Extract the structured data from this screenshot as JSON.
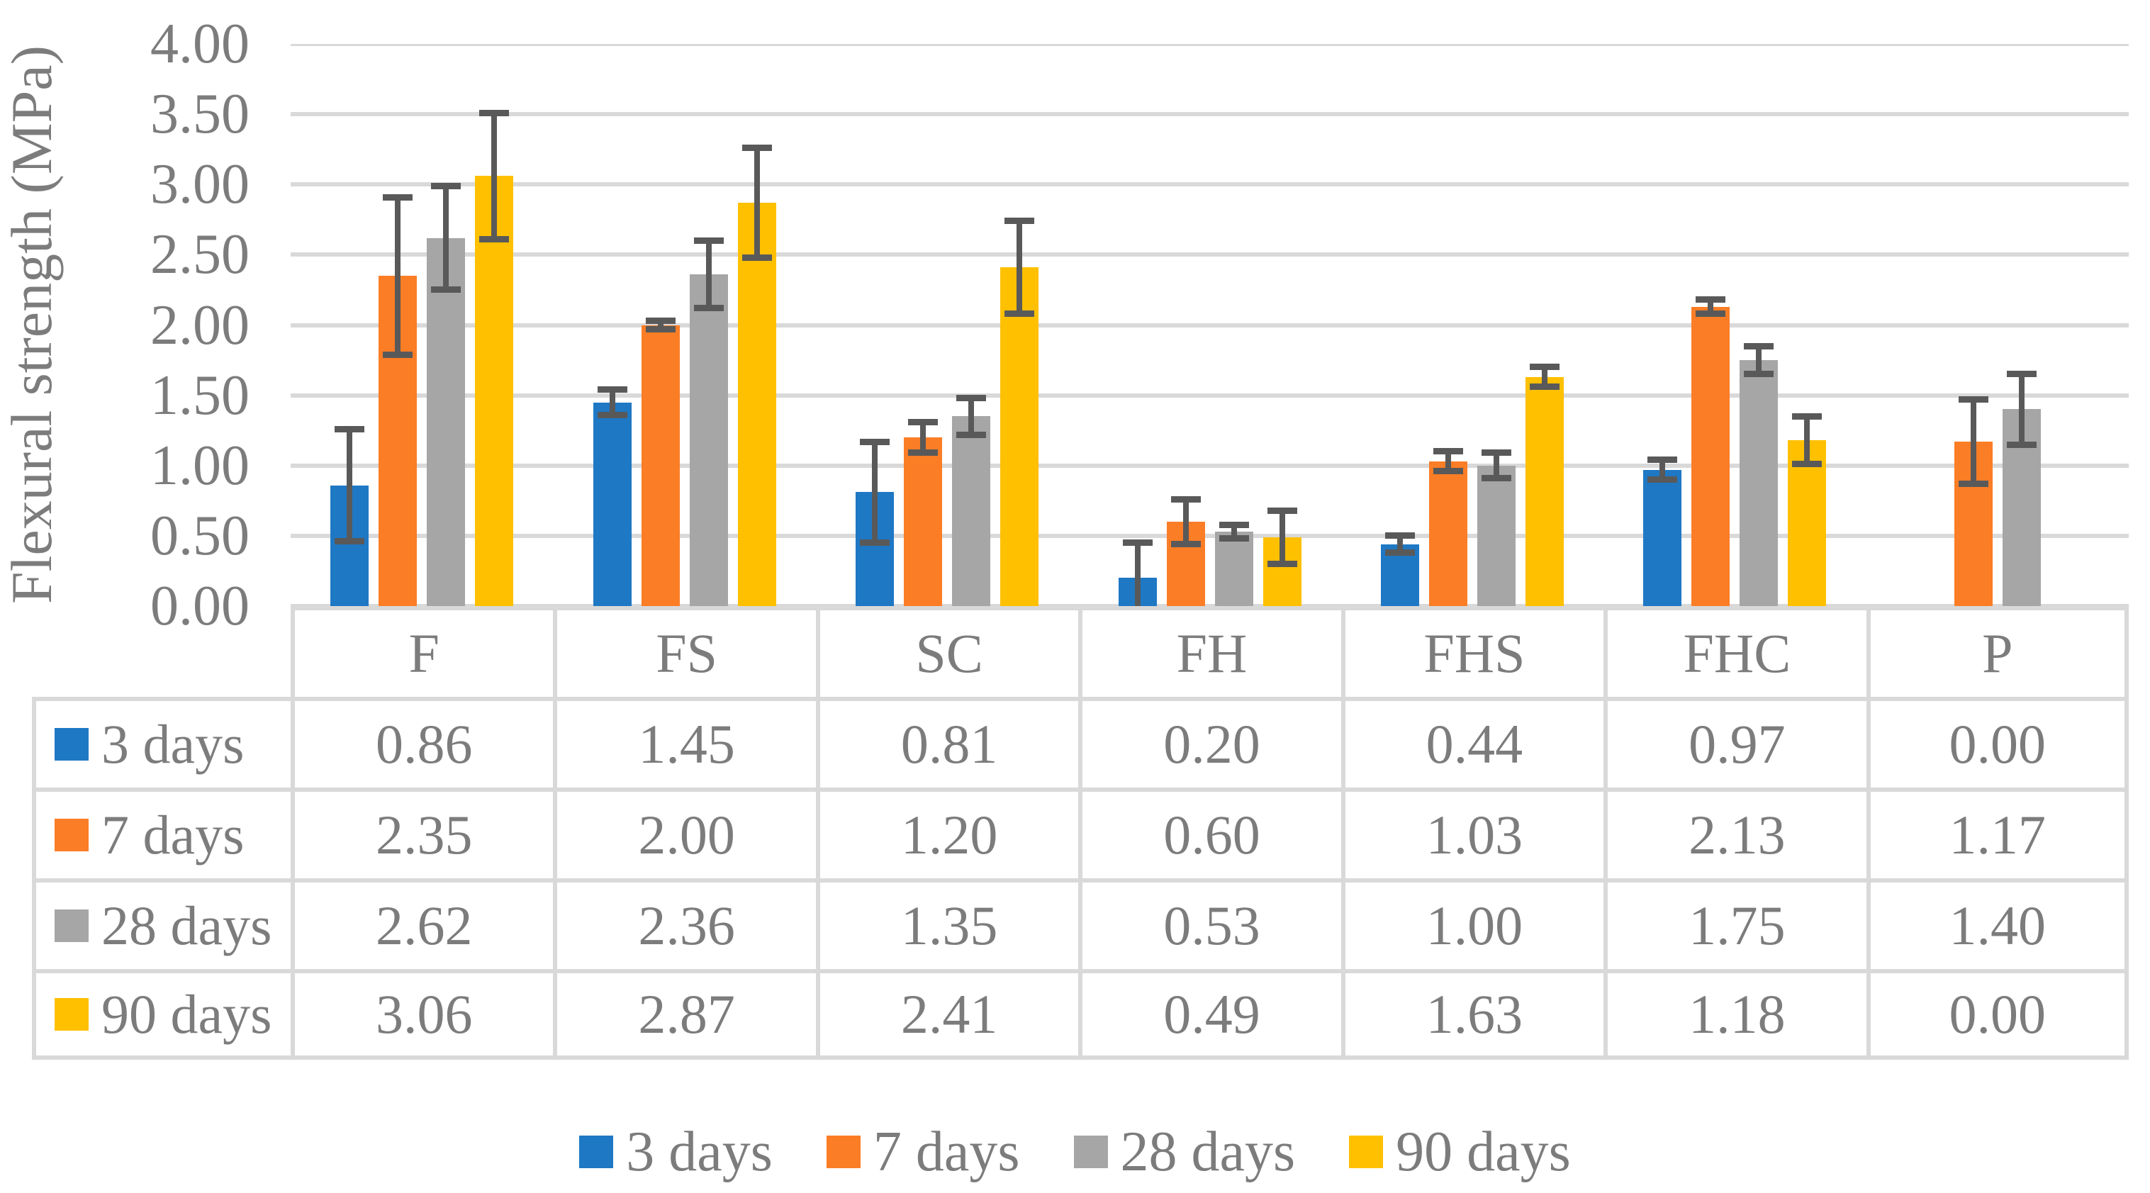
{
  "figure": {
    "background": "#FFFFFF",
    "text_color": "#7C7C7C"
  },
  "chart_data": {
    "type": "bar",
    "title": "",
    "xlabel": "",
    "ylabel": "Flexural strength (MPa)",
    "categories": [
      "F",
      "FS",
      "SC",
      "FH",
      "FHS",
      "FHC",
      "P"
    ],
    "series": [
      {
        "name": "3 days",
        "color": "#1F78C4",
        "values": [
          0.86,
          1.45,
          0.81,
          0.2,
          0.44,
          0.97,
          0.0
        ],
        "errors": [
          0.4,
          0.09,
          0.36,
          0.25,
          0.06,
          0.07,
          0.0
        ]
      },
      {
        "name": "7 days",
        "color": "#FB7D26",
        "values": [
          2.35,
          2.0,
          1.2,
          0.6,
          1.03,
          2.13,
          1.17
        ],
        "errors": [
          0.56,
          0.03,
          0.11,
          0.16,
          0.07,
          0.05,
          0.3
        ]
      },
      {
        "name": "28 days",
        "color": "#A6A6A6",
        "values": [
          2.62,
          2.36,
          1.35,
          0.53,
          1.0,
          1.75,
          1.4
        ],
        "errors": [
          0.37,
          0.24,
          0.13,
          0.05,
          0.09,
          0.1,
          0.25
        ]
      },
      {
        "name": "90 days",
        "color": "#FFC000",
        "values": [
          3.06,
          2.87,
          2.41,
          0.49,
          1.63,
          1.18,
          0.0
        ],
        "errors": [
          0.45,
          0.39,
          0.33,
          0.19,
          0.07,
          0.17,
          0.0
        ]
      }
    ],
    "ylim": [
      0,
      4
    ],
    "y_tick_step": 0.5,
    "y_tick_labels": [
      "0.00",
      "0.50",
      "1.00",
      "1.50",
      "2.00",
      "2.50",
      "3.00",
      "3.50",
      "4.00"
    ],
    "value_format_decimals": 2,
    "grid": true,
    "gridline_color": "#D9D9D9",
    "error_bar_color": "#595959",
    "table_border_color": "#D9D9D9",
    "legend_position": "bottom",
    "hide_zero_bars": true
  }
}
